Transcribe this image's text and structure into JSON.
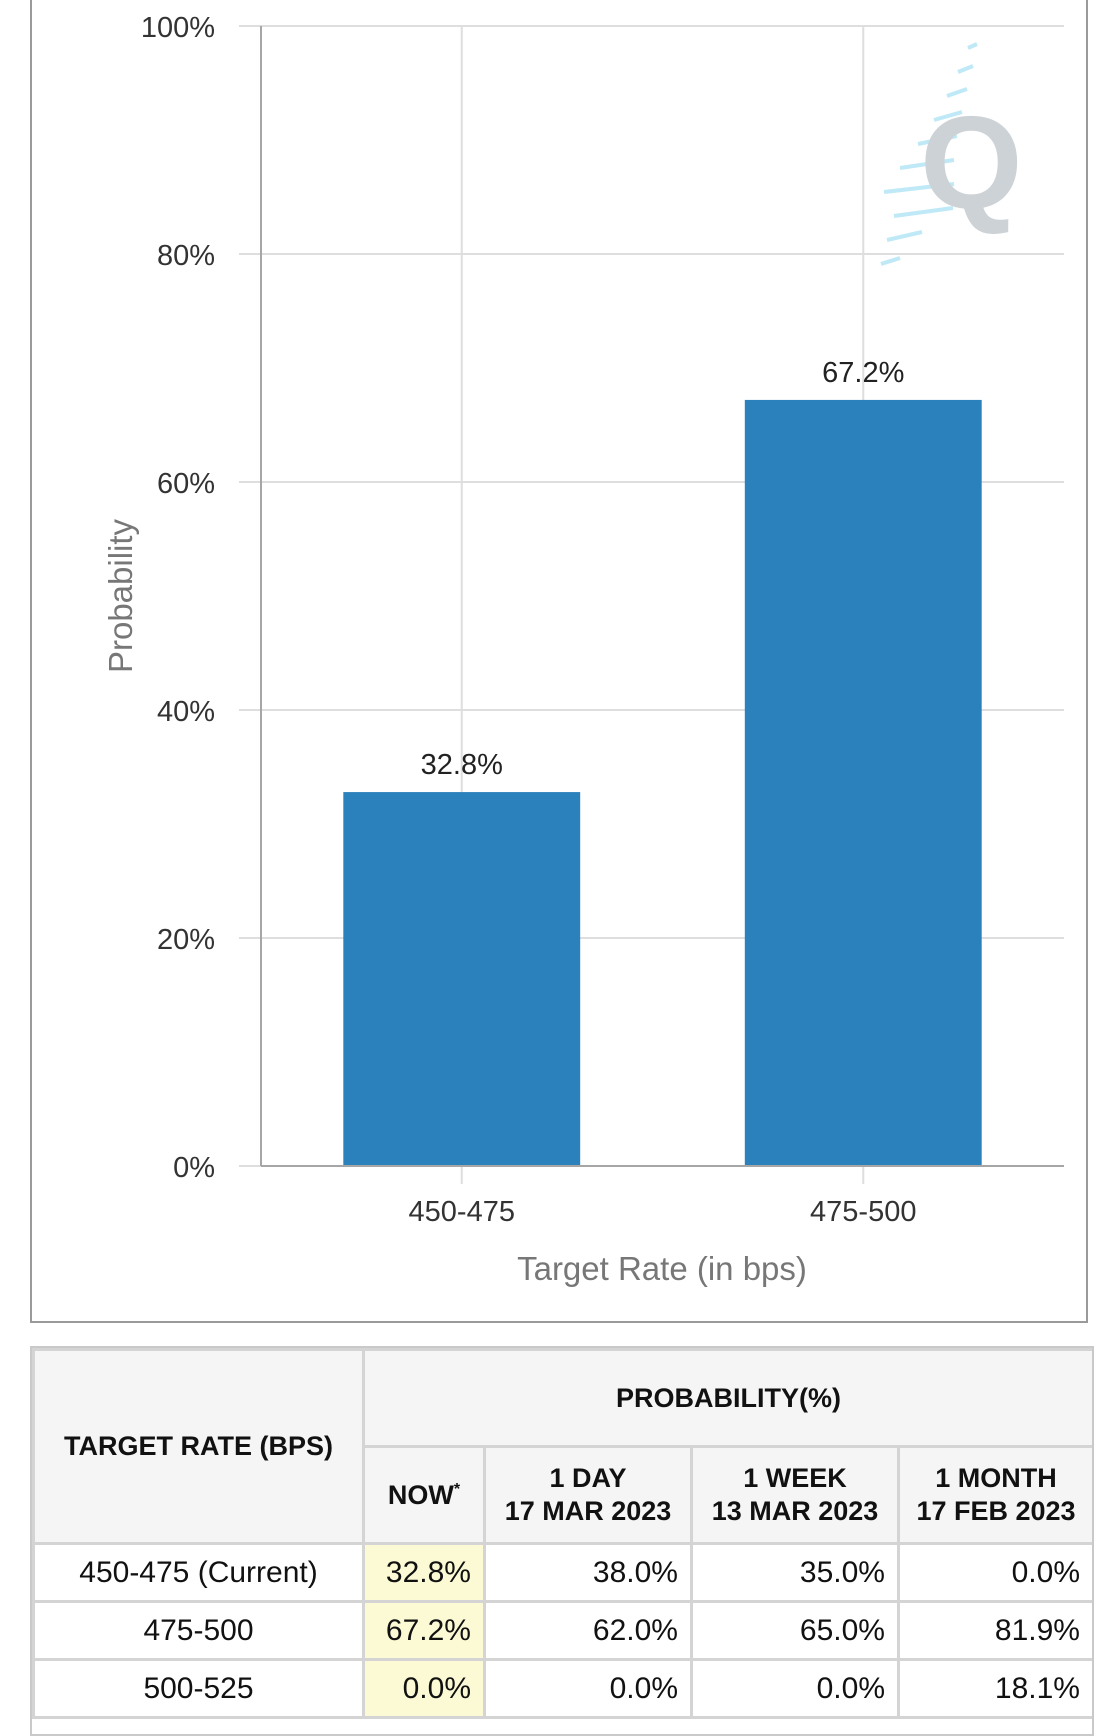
{
  "chart_data": {
    "type": "bar",
    "categories": [
      "450-475",
      "475-500"
    ],
    "values": [
      32.8,
      67.2
    ],
    "data_labels": [
      "32.8%",
      "67.2%"
    ],
    "xlabel": "Target Rate (in bps)",
    "ylabel": "Probability",
    "ylim": [
      0,
      100
    ],
    "yticks": [
      "0%",
      "20%",
      "40%",
      "60%",
      "80%",
      "100%"
    ],
    "grid": true,
    "bar_color": "#2b81bb",
    "watermark": "Q"
  },
  "table": {
    "target_rate_header": "TARGET RATE (BPS)",
    "probability_header": "PROBABILITY(%)",
    "columns": [
      {
        "line1": "NOW",
        "note": "*"
      },
      {
        "line1": "1 DAY",
        "line2": "17 MAR 2023"
      },
      {
        "line1": "1 WEEK",
        "line2": "13 MAR 2023"
      },
      {
        "line1": "1 MONTH",
        "line2": "17 FEB 2023"
      }
    ],
    "rows": [
      {
        "rate": "450-475 (Current)",
        "values": [
          "32.8%",
          "38.0%",
          "35.0%",
          "0.0%"
        ]
      },
      {
        "rate": "475-500",
        "values": [
          "67.2%",
          "62.0%",
          "65.0%",
          "81.9%"
        ]
      },
      {
        "rate": "500-525",
        "values": [
          "0.0%",
          "0.0%",
          "0.0%",
          "18.1%"
        ]
      }
    ],
    "now_highlight_color": "#fbfad4"
  }
}
